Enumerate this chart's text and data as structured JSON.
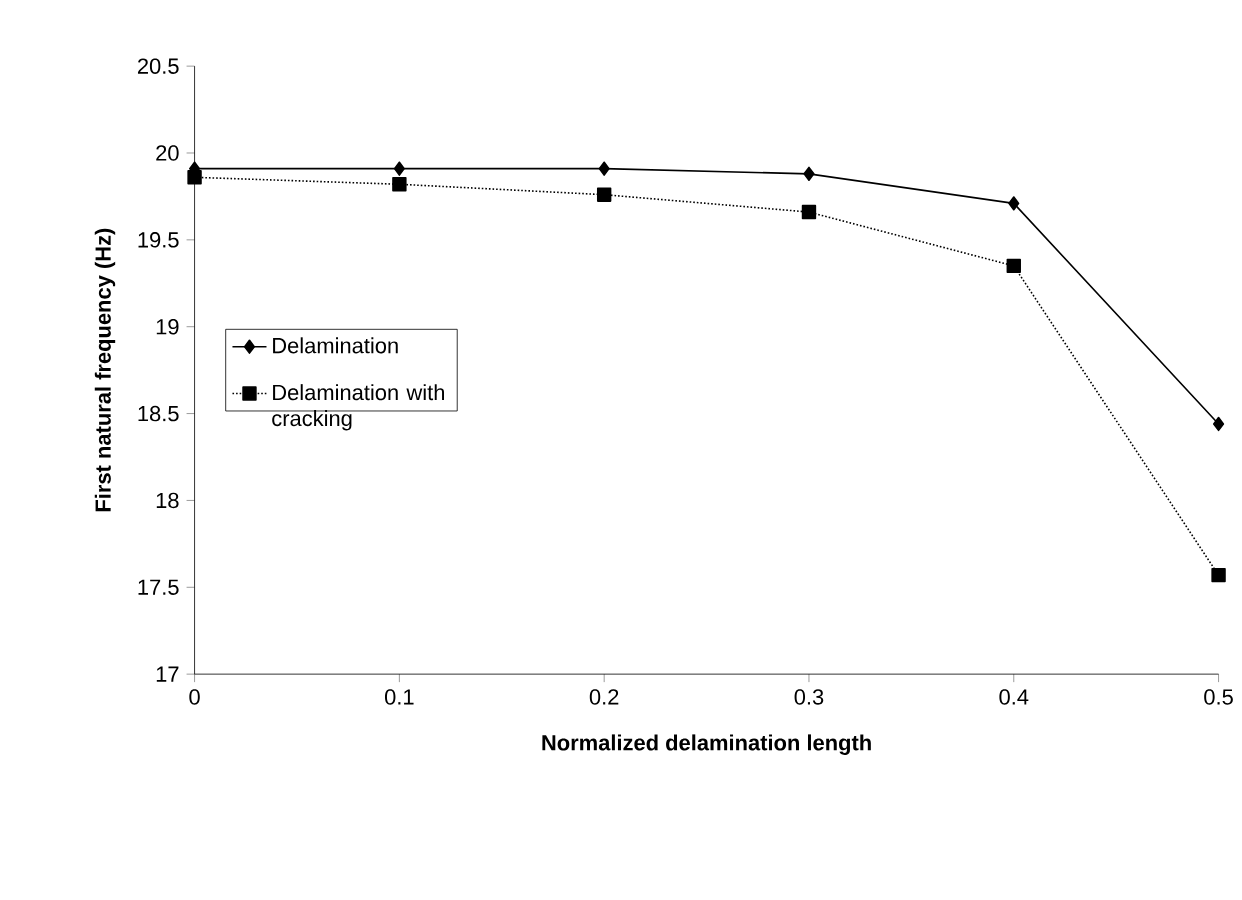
{
  "chart_data": {
    "type": "line",
    "xlabel": "Normalized delamination length",
    "ylabel": "First natural frequency (Hz)",
    "x": [
      0,
      0.1,
      0.2,
      0.3,
      0.4,
      0.5
    ],
    "series": [
      {
        "name": "Delamination",
        "color": "#000000",
        "marker": "diamond",
        "line_style": "solid",
        "values": [
          19.91,
          19.91,
          19.91,
          19.88,
          19.71,
          18.44
        ]
      },
      {
        "name": "Delamination with cracking",
        "color": "#000000",
        "marker": "square",
        "line_style": "dotted",
        "values": [
          19.86,
          19.82,
          19.76,
          19.66,
          19.35,
          17.57
        ]
      }
    ],
    "xlim": [
      0,
      0.5
    ],
    "xticks": [
      0,
      0.1,
      0.2,
      0.3,
      0.4,
      0.5
    ],
    "ylim": [
      17,
      20.5
    ],
    "yticks": [
      17,
      17.5,
      18,
      18.5,
      19,
      19.5,
      20,
      20.5
    ],
    "grid": false,
    "legend": "left"
  }
}
